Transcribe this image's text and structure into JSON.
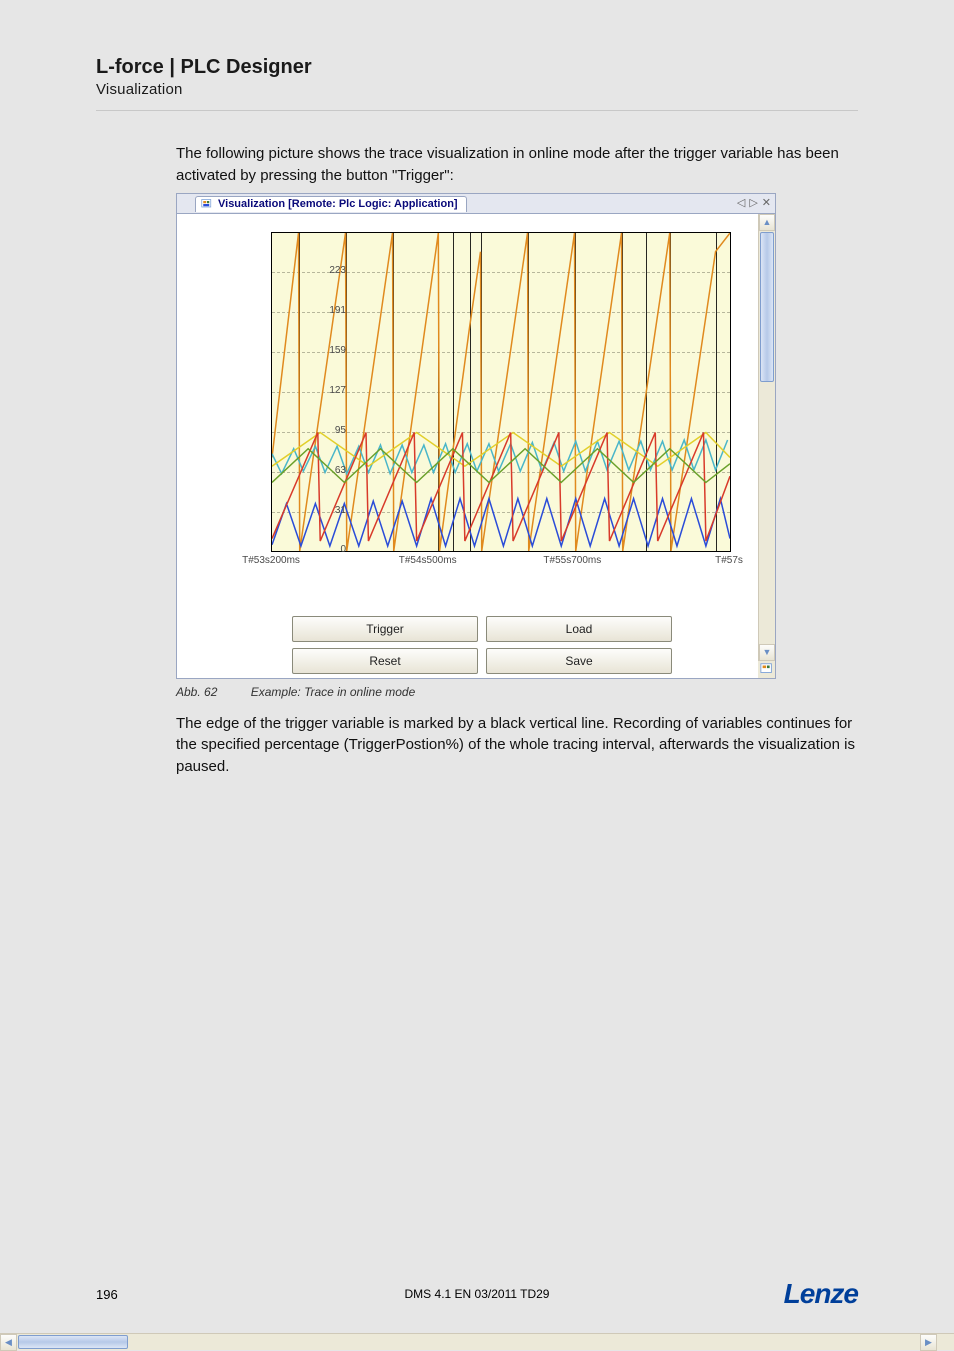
{
  "doc": {
    "title": "L-force | PLC Designer",
    "subtitle": "Visualization",
    "intro": "The following picture shows the trace visualization in online mode after the trigger variable has been activated by pressing the button \"Trigger\":",
    "caption_abb": "Abb. 62",
    "caption_text": "Example: Trace in online mode",
    "after": "The edge of the trigger variable is marked by a black vertical line. Recording of variables continues for the specified percentage (TriggerPostion%) of the whole tracing interval, afterwards the visualization is paused.",
    "page_number": "196",
    "footer_center": "DMS 4.1 EN 03/2011 TD29",
    "logo": "Lenze"
  },
  "screenshot": {
    "tab_title": "Visualization [Remote: Plc Logic: Application]",
    "buttons": {
      "trigger": "Trigger",
      "load": "Load",
      "reset": "Reset",
      "save": "Save"
    },
    "chart": {
      "type": "line",
      "background_color": "#fafad9",
      "grid_color": "#b7b79c",
      "axis_color": "#000000",
      "ylim": [
        0,
        255
      ],
      "yticks": [
        0,
        31,
        63,
        95,
        127,
        159,
        191,
        223
      ],
      "xlim": [
        0,
        3800
      ],
      "xticks": [
        {
          "pos": 0,
          "label": "T#53s200ms"
        },
        {
          "pos": 1300,
          "label": "T#54s500ms"
        },
        {
          "pos": 2500,
          "label": "T#55s700ms"
        },
        {
          "pos": 3800,
          "label": "T#57s"
        }
      ],
      "trigger_verticals": [
        220,
        610,
        1000,
        1380,
        1500,
        1640,
        1730,
        2120,
        2510,
        2900,
        3100,
        3300,
        3680
      ],
      "series": [
        {
          "name": "orange",
          "color": "#e08a1e",
          "width": 1.5,
          "points": [
            [
              0,
              75
            ],
            [
              220,
              255
            ],
            [
              230,
              0
            ],
            [
              610,
              255
            ],
            [
              620,
              0
            ],
            [
              1000,
              255
            ],
            [
              1010,
              0
            ],
            [
              1380,
              255
            ],
            [
              1390,
              0
            ],
            [
              1500,
              80
            ],
            [
              1640,
              180
            ],
            [
              1730,
              240
            ],
            [
              1740,
              0
            ],
            [
              2120,
              255
            ],
            [
              2130,
              0
            ],
            [
              2510,
              255
            ],
            [
              2520,
              0
            ],
            [
              2900,
              255
            ],
            [
              2910,
              0
            ],
            [
              3300,
              255
            ],
            [
              3310,
              0
            ],
            [
              3680,
              240
            ],
            [
              3800,
              255
            ]
          ]
        },
        {
          "name": "cyan",
          "color": "#49b6c9",
          "width": 1.5,
          "points": [
            [
              0,
              78
            ],
            [
              80,
              62
            ],
            [
              180,
              82
            ],
            [
              260,
              64
            ],
            [
              360,
              84
            ],
            [
              440,
              63
            ],
            [
              540,
              84
            ],
            [
              620,
              62
            ],
            [
              720,
              84
            ],
            [
              800,
              63
            ],
            [
              900,
              85
            ],
            [
              980,
              62
            ],
            [
              1080,
              85
            ],
            [
              1160,
              63
            ],
            [
              1260,
              85
            ],
            [
              1340,
              63
            ],
            [
              1440,
              86
            ],
            [
              1520,
              63
            ],
            [
              1620,
              86
            ],
            [
              1700,
              64
            ],
            [
              1800,
              86
            ],
            [
              1880,
              64
            ],
            [
              1980,
              86
            ],
            [
              2060,
              64
            ],
            [
              2160,
              87
            ],
            [
              2240,
              64
            ],
            [
              2340,
              87
            ],
            [
              2420,
              64
            ],
            [
              2520,
              88
            ],
            [
              2600,
              64
            ],
            [
              2700,
              88
            ],
            [
              2780,
              65
            ],
            [
              2880,
              88
            ],
            [
              2960,
              65
            ],
            [
              3060,
              88
            ],
            [
              3140,
              65
            ],
            [
              3240,
              88
            ],
            [
              3320,
              65
            ],
            [
              3420,
              89
            ],
            [
              3500,
              65
            ],
            [
              3600,
              89
            ],
            [
              3680,
              65
            ],
            [
              3780,
              89
            ]
          ]
        },
        {
          "name": "blue",
          "color": "#2a4cd8",
          "width": 1.5,
          "points": [
            [
              0,
              5
            ],
            [
              120,
              38
            ],
            [
              240,
              4
            ],
            [
              360,
              38
            ],
            [
              480,
              4
            ],
            [
              600,
              38
            ],
            [
              720,
              4
            ],
            [
              840,
              40
            ],
            [
              960,
              4
            ],
            [
              1080,
              40
            ],
            [
              1200,
              4
            ],
            [
              1320,
              42
            ],
            [
              1440,
              4
            ],
            [
              1560,
              42
            ],
            [
              1680,
              4
            ],
            [
              1800,
              42
            ],
            [
              1920,
              4
            ],
            [
              2040,
              42
            ],
            [
              2160,
              4
            ],
            [
              2280,
              42
            ],
            [
              2400,
              4
            ],
            [
              2520,
              42
            ],
            [
              2640,
              4
            ],
            [
              2760,
              42
            ],
            [
              2880,
              4
            ],
            [
              3000,
              42
            ],
            [
              3120,
              4
            ],
            [
              3240,
              42
            ],
            [
              3360,
              4
            ],
            [
              3480,
              42
            ],
            [
              3600,
              4
            ],
            [
              3720,
              42
            ],
            [
              3800,
              10
            ]
          ]
        },
        {
          "name": "yellow",
          "color": "#e2cf2a",
          "width": 1.5,
          "points": [
            [
              0,
              68
            ],
            [
              400,
              95
            ],
            [
              800,
              68
            ],
            [
              1200,
              95
            ],
            [
              1600,
              68
            ],
            [
              2000,
              95
            ],
            [
              2400,
              68
            ],
            [
              2800,
              95
            ],
            [
              3200,
              68
            ],
            [
              3600,
              95
            ],
            [
              3800,
              75
            ]
          ]
        },
        {
          "name": "red",
          "color": "#d83a2a",
          "width": 1.5,
          "points": [
            [
              0,
              10
            ],
            [
              380,
              95
            ],
            [
              400,
              8
            ],
            [
              780,
              95
            ],
            [
              800,
              8
            ],
            [
              1180,
              95
            ],
            [
              1200,
              8
            ],
            [
              1580,
              95
            ],
            [
              1600,
              8
            ],
            [
              1980,
              95
            ],
            [
              2000,
              8
            ],
            [
              2380,
              95
            ],
            [
              2400,
              8
            ],
            [
              2780,
              95
            ],
            [
              2800,
              8
            ],
            [
              3180,
              95
            ],
            [
              3200,
              8
            ],
            [
              3580,
              95
            ],
            [
              3600,
              8
            ],
            [
              3800,
              60
            ]
          ]
        },
        {
          "name": "green",
          "color": "#6aa02a",
          "width": 1.5,
          "points": [
            [
              0,
              55
            ],
            [
              300,
              82
            ],
            [
              600,
              55
            ],
            [
              900,
              82
            ],
            [
              1200,
              55
            ],
            [
              1500,
              82
            ],
            [
              1800,
              55
            ],
            [
              2100,
              82
            ],
            [
              2400,
              55
            ],
            [
              2700,
              82
            ],
            [
              3000,
              55
            ],
            [
              3300,
              82
            ],
            [
              3600,
              55
            ],
            [
              3800,
              70
            ]
          ]
        }
      ]
    }
  }
}
